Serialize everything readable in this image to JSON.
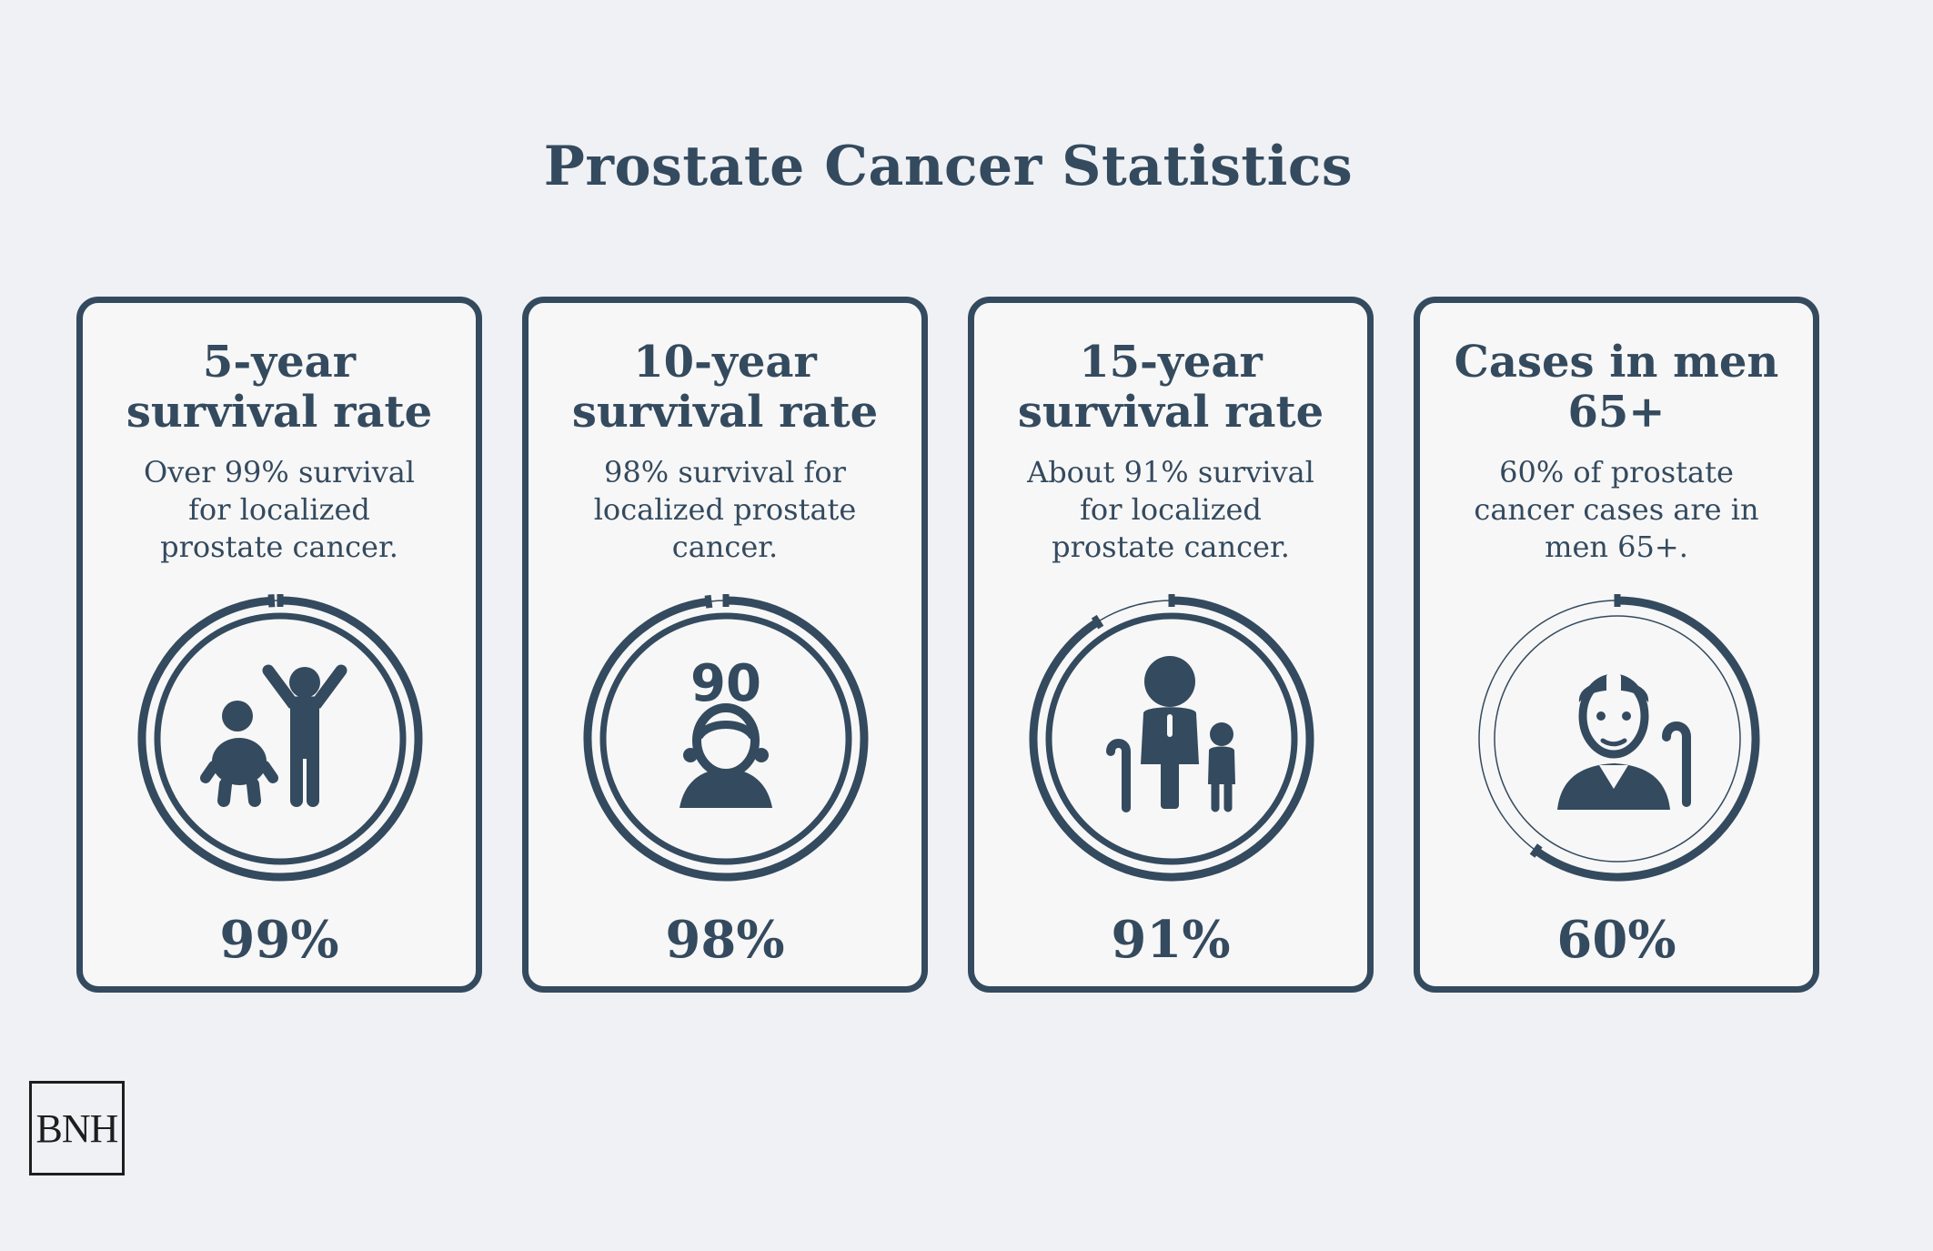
{
  "title": "Prostate Cancer Statistics",
  "colors": {
    "primary": "#344a5e",
    "background": "#f0f1f4",
    "card": "#f7f7f7"
  },
  "chart_data": {
    "type": "donut",
    "title": "Prostate Cancer Statistics",
    "unit": "%",
    "ylim": [
      0,
      100
    ],
    "categories": [
      "5-year survival rate",
      "10-year survival rate",
      "15-year survival rate",
      "Cases in men 65+"
    ],
    "values": [
      99,
      98,
      91,
      60
    ]
  },
  "cards": [
    {
      "title": "5-year survival rate",
      "description": "Over 99% survival for localized prostate cancer.",
      "value": 99,
      "value_label": "99%",
      "icon": "children-icon"
    },
    {
      "title": "10-year survival rate",
      "description": "98% survival for localized prostate cancer.",
      "value": 98,
      "value_label": "98%",
      "icon": "nonagenarian-icon",
      "icon_text": "90"
    },
    {
      "title": "15-year survival rate",
      "description": "About 91% survival for localized prostate cancer.",
      "value": 91,
      "value_label": "91%",
      "icon": "family-icon"
    },
    {
      "title": "Cases in men 65+",
      "description": "60% of prostate cancer cases are in men 65+.",
      "value": 60,
      "value_label": "60%",
      "icon": "elderly-man-icon"
    }
  ],
  "logo": {
    "text": "BNH"
  }
}
